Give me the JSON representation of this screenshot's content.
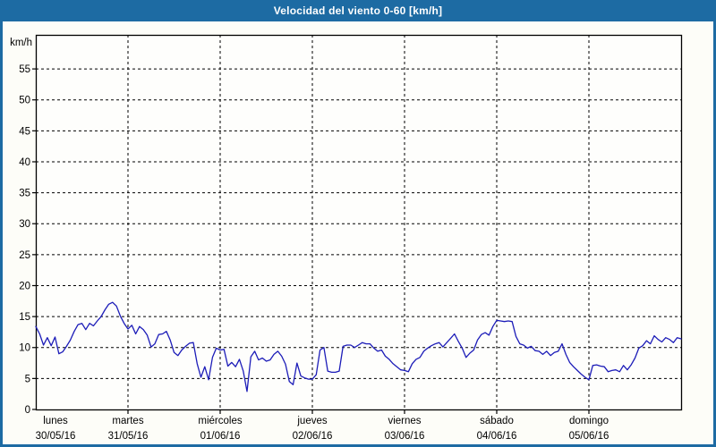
{
  "window": {
    "title": "Velocidad del viento 0-60 [km/h]"
  },
  "colors": {
    "frame": "#1d6ba3",
    "title_text": "#ffffff",
    "background": "#fdfdf8",
    "plot_background": "#fefefc",
    "axis": "#000000",
    "grid": "#000000",
    "line": "#1c1cb8",
    "label_text": "#000000"
  },
  "chart_data": {
    "type": "line",
    "title": "Velocidad del viento 0-60 [km/h]",
    "unit_label": "km/h",
    "ylabel": "km/h",
    "xlabel": "",
    "ylim": [
      0,
      60
    ],
    "y_tick_step": 5,
    "y_tick_labels": [
      "0",
      "5",
      "10",
      "15",
      "20",
      "25",
      "30",
      "35",
      "40",
      "45",
      "50",
      "55"
    ],
    "grid": "dashed",
    "legend": "none",
    "samples_per_day": 24,
    "x_days": [
      {
        "name": "lunes",
        "date": "30/05/16"
      },
      {
        "name": "martes",
        "date": "31/05/16"
      },
      {
        "name": "miércoles",
        "date": "01/06/16"
      },
      {
        "name": "jueves",
        "date": "02/06/16"
      },
      {
        "name": "viernes",
        "date": "03/06/16"
      },
      {
        "name": "sábado",
        "date": "04/06/16"
      },
      {
        "name": "domingo",
        "date": "05/06/16"
      }
    ],
    "values": [
      13.4,
      12.2,
      10.4,
      11.6,
      10.3,
      11.7,
      9.0,
      9.3,
      10.2,
      11.2,
      12.6,
      13.7,
      13.9,
      12.9,
      13.9,
      13.5,
      14.3,
      15.0,
      16.1,
      17.0,
      17.3,
      16.7,
      15.1,
      13.9,
      13.0,
      13.6,
      12.2,
      13.4,
      12.9,
      12.0,
      10.1,
      10.6,
      12.1,
      12.2,
      12.6,
      11.2,
      9.2,
      8.7,
      9.6,
      10.2,
      10.7,
      10.8,
      7.4,
      5.2,
      6.9,
      4.8,
      8.4,
      9.9,
      9.6,
      9.7,
      7.0,
      7.6,
      6.9,
      8.1,
      6.2,
      2.9,
      8.5,
      9.4,
      8.0,
      8.3,
      7.8,
      8.0,
      8.9,
      9.4,
      8.6,
      7.3,
      4.5,
      4.0,
      7.5,
      5.4,
      5.1,
      4.9,
      4.9,
      5.6,
      9.6,
      10.0,
      6.2,
      6.0,
      6.0,
      6.2,
      10.2,
      10.4,
      10.4,
      10.0,
      10.4,
      10.8,
      10.6,
      10.6,
      9.9,
      9.4,
      9.6,
      8.6,
      8.1,
      7.4,
      6.9,
      6.4,
      6.3,
      6.1,
      7.4,
      8.1,
      8.4,
      9.4,
      9.9,
      10.3,
      10.6,
      10.8,
      10.1,
      10.8,
      11.5,
      12.2,
      11.0,
      9.9,
      8.4,
      9.1,
      9.6,
      11.2,
      12.1,
      12.4,
      12.0,
      13.4,
      14.4,
      14.3,
      14.2,
      14.3,
      14.2,
      11.8,
      10.6,
      10.4,
      9.9,
      10.2,
      9.5,
      9.4,
      8.9,
      9.4,
      8.7,
      9.2,
      9.4,
      10.6,
      8.9,
      7.6,
      6.9,
      6.3,
      5.7,
      5.2,
      4.8,
      7.1,
      7.2,
      7.0,
      6.9,
      6.1,
      6.3,
      6.4,
      6.1,
      7.1,
      6.4,
      7.2,
      8.3,
      9.9,
      10.3,
      11.1,
      10.6,
      11.9,
      11.3,
      10.9,
      11.6,
      11.3,
      10.8,
      11.6,
      11.4
    ]
  }
}
